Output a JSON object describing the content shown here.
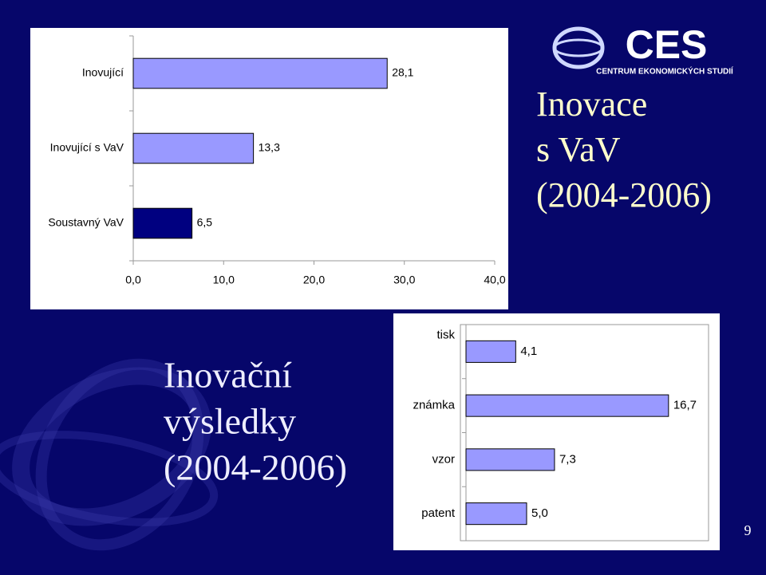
{
  "chart_data": [
    {
      "type": "hbar",
      "title": [
        "Inovace",
        "s VaV",
        "(2004-2006)"
      ],
      "categories": [
        "Inovující",
        "Inovující s VaV",
        "Soustavný VaV"
      ],
      "values": [
        28.1,
        13.3,
        6.5
      ],
      "value_labels": [
        "28,1",
        "13,3",
        "6,5"
      ],
      "colors": [
        "#9999ff",
        "#9999ff",
        "#000080"
      ],
      "xlim": [
        0,
        40
      ],
      "xticks": [
        {
          "value": 0,
          "label": "0,0"
        },
        {
          "value": 10,
          "label": "10,0"
        },
        {
          "value": 20,
          "label": "20,0"
        },
        {
          "value": 30,
          "label": "30,0"
        },
        {
          "value": 40,
          "label": "40,0"
        }
      ]
    },
    {
      "type": "hbar",
      "title": [
        "Inovační",
        "výsledky",
        "(2004-2006)"
      ],
      "categories": [
        "tisk",
        "známka",
        "vzor",
        "patent"
      ],
      "values": [
        4.1,
        16.7,
        7.3,
        5.0
      ],
      "value_labels": [
        "4,1",
        "16,7",
        "7,3",
        "5,0"
      ],
      "colors": [
        "#9999ff",
        "#9999ff",
        "#9999ff",
        "#9999ff"
      ],
      "xlim": [
        0,
        20
      ]
    }
  ],
  "logo": {
    "name": "CES",
    "subtitle": "CENTRUM EKONOMICKÝCH STUDIÍ"
  },
  "page_number": "9"
}
